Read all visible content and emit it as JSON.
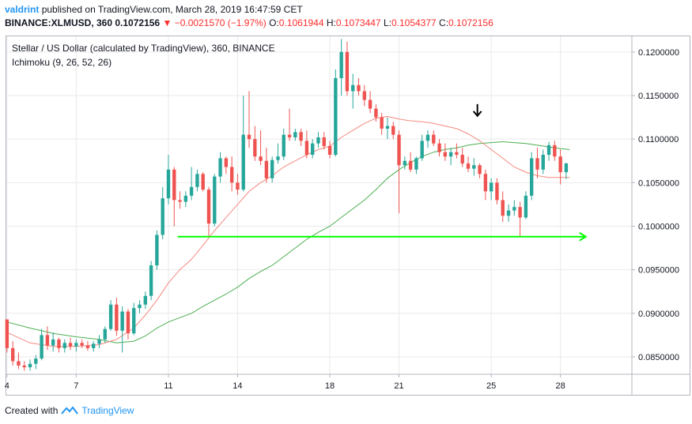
{
  "header": {
    "author": "valdrint",
    "published_text": "published on TradingView.com, March 28, 2019 16:47:59 CET",
    "symbol": "BINANCE:XLMUSD, 360",
    "last": "0.1072156",
    "change": "−0.0021570 (−1.97%)",
    "o_label": "O:",
    "o_value": "0.1061944",
    "h_label": "H:",
    "h_value": "0.1073447",
    "l_label": "L:",
    "l_value": "0.1054377",
    "c_label": "C:",
    "c_value": "0.1072156"
  },
  "legend": {
    "title": "Stellar / US Dollar (calculated by TradingView), 360, BINANCE",
    "indicator": "Ichimoku (9, 26, 52, 26)"
  },
  "footer": {
    "created_with": "Created with",
    "brand": "TradingView"
  },
  "colors": {
    "up": "#26a69a",
    "down": "#ef5350",
    "conversion_line": "#f5897f",
    "base_line": "#4caf50",
    "support_arrow": "#00ff00",
    "pointer_arrow": "#000000",
    "axis_text": "#131722",
    "grid": "#e9e9ea"
  },
  "chart_data": {
    "type": "candlestick",
    "title": "Stellar / US Dollar (calculated by TradingView), 360, BINANCE",
    "y_axis": {
      "range": [
        0.083,
        0.1218
      ],
      "ticks": [
        "0.1200000",
        "0.1150000",
        "0.1100000",
        "0.1050000",
        "0.1000000",
        "0.0950000",
        "0.0900000",
        "0.0850000"
      ],
      "tick_values": [
        0.12,
        0.115,
        0.11,
        0.105,
        0.1,
        0.095,
        0.09,
        0.085
      ]
    },
    "x_axis": {
      "ticks": [
        "4",
        "7",
        "11",
        "14",
        "18",
        "21",
        "25",
        "28"
      ],
      "tick_days": [
        4,
        7,
        11,
        14,
        18,
        21,
        25,
        28
      ],
      "day_range": [
        3.97,
        31.1
      ]
    },
    "candles": [
      {
        "day": 4.0,
        "o": 0.0893,
        "h": 0.0893,
        "l": 0.0855,
        "c": 0.086
      },
      {
        "day": 4.25,
        "o": 0.086,
        "h": 0.0868,
        "l": 0.084,
        "c": 0.0845
      },
      {
        "day": 4.5,
        "o": 0.0845,
        "h": 0.0855,
        "l": 0.0836,
        "c": 0.084
      },
      {
        "day": 4.75,
        "o": 0.084,
        "h": 0.0845,
        "l": 0.0834,
        "c": 0.0838
      },
      {
        "day": 5.0,
        "o": 0.0838,
        "h": 0.0847,
        "l": 0.0834,
        "c": 0.0842
      },
      {
        "day": 5.25,
        "o": 0.0842,
        "h": 0.0852,
        "l": 0.0836,
        "c": 0.0848
      },
      {
        "day": 5.5,
        "o": 0.0848,
        "h": 0.0882,
        "l": 0.0846,
        "c": 0.0875
      },
      {
        "day": 5.75,
        "o": 0.0875,
        "h": 0.0885,
        "l": 0.0858,
        "c": 0.0863
      },
      {
        "day": 6.0,
        "o": 0.0863,
        "h": 0.0878,
        "l": 0.0856,
        "c": 0.087
      },
      {
        "day": 6.25,
        "o": 0.087,
        "h": 0.0872,
        "l": 0.0855,
        "c": 0.086
      },
      {
        "day": 6.5,
        "o": 0.086,
        "h": 0.087,
        "l": 0.0855,
        "c": 0.0866
      },
      {
        "day": 6.75,
        "o": 0.0866,
        "h": 0.0872,
        "l": 0.0858,
        "c": 0.0862
      },
      {
        "day": 7.0,
        "o": 0.0862,
        "h": 0.087,
        "l": 0.0856,
        "c": 0.0866
      },
      {
        "day": 7.25,
        "o": 0.0866,
        "h": 0.087,
        "l": 0.086,
        "c": 0.0863
      },
      {
        "day": 7.5,
        "o": 0.0863,
        "h": 0.0868,
        "l": 0.0857,
        "c": 0.086
      },
      {
        "day": 7.75,
        "o": 0.086,
        "h": 0.0868,
        "l": 0.0856,
        "c": 0.0865
      },
      {
        "day": 8.0,
        "o": 0.0865,
        "h": 0.0875,
        "l": 0.086,
        "c": 0.087
      },
      {
        "day": 8.25,
        "o": 0.087,
        "h": 0.0885,
        "l": 0.0866,
        "c": 0.0882
      },
      {
        "day": 8.5,
        "o": 0.0882,
        "h": 0.0915,
        "l": 0.088,
        "c": 0.091
      },
      {
        "day": 8.75,
        "o": 0.091,
        "h": 0.0918,
        "l": 0.0874,
        "c": 0.088
      },
      {
        "day": 9.0,
        "o": 0.088,
        "h": 0.0908,
        "l": 0.0855,
        "c": 0.0902
      },
      {
        "day": 9.25,
        "o": 0.0902,
        "h": 0.0905,
        "l": 0.087,
        "c": 0.0877
      },
      {
        "day": 9.5,
        "o": 0.0877,
        "h": 0.0912,
        "l": 0.0875,
        "c": 0.0906
      },
      {
        "day": 9.75,
        "o": 0.0906,
        "h": 0.0915,
        "l": 0.09,
        "c": 0.091
      },
      {
        "day": 10.0,
        "o": 0.091,
        "h": 0.0925,
        "l": 0.0905,
        "c": 0.092
      },
      {
        "day": 10.25,
        "o": 0.092,
        "h": 0.096,
        "l": 0.0915,
        "c": 0.0955
      },
      {
        "day": 10.5,
        "o": 0.0955,
        "h": 0.0995,
        "l": 0.095,
        "c": 0.099
      },
      {
        "day": 10.75,
        "o": 0.099,
        "h": 0.1045,
        "l": 0.0985,
        "c": 0.1032
      },
      {
        "day": 11.0,
        "o": 0.1032,
        "h": 0.1082,
        "l": 0.1025,
        "c": 0.1065
      },
      {
        "day": 11.25,
        "o": 0.1065,
        "h": 0.1068,
        "l": 0.1,
        "c": 0.103
      },
      {
        "day": 11.5,
        "o": 0.103,
        "h": 0.104,
        "l": 0.102,
        "c": 0.1028
      },
      {
        "day": 11.75,
        "o": 0.1028,
        "h": 0.104,
        "l": 0.1022,
        "c": 0.1035
      },
      {
        "day": 12.0,
        "o": 0.1035,
        "h": 0.1068,
        "l": 0.103,
        "c": 0.1045
      },
      {
        "day": 12.25,
        "o": 0.1045,
        "h": 0.1065,
        "l": 0.104,
        "c": 0.106
      },
      {
        "day": 12.5,
        "o": 0.106,
        "h": 0.1062,
        "l": 0.104,
        "c": 0.1042
      },
      {
        "day": 12.75,
        "o": 0.1042,
        "h": 0.1045,
        "l": 0.0988,
        "c": 0.1003
      },
      {
        "day": 13.0,
        "o": 0.1003,
        "h": 0.106,
        "l": 0.1,
        "c": 0.1057
      },
      {
        "day": 13.25,
        "o": 0.1057,
        "h": 0.1085,
        "l": 0.105,
        "c": 0.1078
      },
      {
        "day": 13.5,
        "o": 0.1078,
        "h": 0.108,
        "l": 0.106,
        "c": 0.1068
      },
      {
        "day": 13.75,
        "o": 0.1068,
        "h": 0.108,
        "l": 0.104,
        "c": 0.105
      },
      {
        "day": 14.0,
        "o": 0.105,
        "h": 0.106,
        "l": 0.1036,
        "c": 0.1042
      },
      {
        "day": 14.25,
        "o": 0.1042,
        "h": 0.115,
        "l": 0.104,
        "c": 0.1105
      },
      {
        "day": 14.5,
        "o": 0.1105,
        "h": 0.1155,
        "l": 0.109,
        "c": 0.11
      },
      {
        "day": 14.75,
        "o": 0.11,
        "h": 0.1115,
        "l": 0.1075,
        "c": 0.108
      },
      {
        "day": 15.0,
        "o": 0.108,
        "h": 0.111,
        "l": 0.107,
        "c": 0.1075
      },
      {
        "day": 15.25,
        "o": 0.1075,
        "h": 0.109,
        "l": 0.105,
        "c": 0.1055
      },
      {
        "day": 15.5,
        "o": 0.1055,
        "h": 0.108,
        "l": 0.105,
        "c": 0.1076
      },
      {
        "day": 15.75,
        "o": 0.1076,
        "h": 0.1095,
        "l": 0.1072,
        "c": 0.108
      },
      {
        "day": 16.0,
        "o": 0.108,
        "h": 0.1112,
        "l": 0.1076,
        "c": 0.1105
      },
      {
        "day": 16.25,
        "o": 0.1105,
        "h": 0.1135,
        "l": 0.1098,
        "c": 0.1102
      },
      {
        "day": 16.5,
        "o": 0.1102,
        "h": 0.1112,
        "l": 0.1098,
        "c": 0.1108
      },
      {
        "day": 16.75,
        "o": 0.1108,
        "h": 0.1112,
        "l": 0.1092,
        "c": 0.1098
      },
      {
        "day": 17.0,
        "o": 0.1098,
        "h": 0.111,
        "l": 0.1078,
        "c": 0.1082
      },
      {
        "day": 17.25,
        "o": 0.1082,
        "h": 0.11,
        "l": 0.1078,
        "c": 0.1095
      },
      {
        "day": 17.5,
        "o": 0.1095,
        "h": 0.1108,
        "l": 0.109,
        "c": 0.1102
      },
      {
        "day": 17.75,
        "o": 0.1102,
        "h": 0.1108,
        "l": 0.1088,
        "c": 0.1092
      },
      {
        "day": 18.0,
        "o": 0.1092,
        "h": 0.1098,
        "l": 0.1078,
        "c": 0.1082
      },
      {
        "day": 18.25,
        "o": 0.1082,
        "h": 0.118,
        "l": 0.108,
        "c": 0.117
      },
      {
        "day": 18.5,
        "o": 0.117,
        "h": 0.1215,
        "l": 0.115,
        "c": 0.12
      },
      {
        "day": 18.75,
        "o": 0.12,
        "h": 0.1212,
        "l": 0.115,
        "c": 0.1155
      },
      {
        "day": 19.0,
        "o": 0.1155,
        "h": 0.1175,
        "l": 0.1135,
        "c": 0.1162
      },
      {
        "day": 19.25,
        "o": 0.1162,
        "h": 0.117,
        "l": 0.115,
        "c": 0.1155
      },
      {
        "day": 19.5,
        "o": 0.1155,
        "h": 0.1162,
        "l": 0.1138,
        "c": 0.1145
      },
      {
        "day": 19.75,
        "o": 0.1145,
        "h": 0.1155,
        "l": 0.113,
        "c": 0.1135
      },
      {
        "day": 20.0,
        "o": 0.1135,
        "h": 0.114,
        "l": 0.112,
        "c": 0.1125
      },
      {
        "day": 20.25,
        "o": 0.1125,
        "h": 0.113,
        "l": 0.1105,
        "c": 0.1112
      },
      {
        "day": 20.5,
        "o": 0.1112,
        "h": 0.1125,
        "l": 0.11,
        "c": 0.1115
      },
      {
        "day": 20.75,
        "o": 0.1115,
        "h": 0.112,
        "l": 0.11,
        "c": 0.1105
      },
      {
        "day": 21.0,
        "o": 0.1105,
        "h": 0.111,
        "l": 0.1015,
        "c": 0.107
      },
      {
        "day": 21.25,
        "o": 0.107,
        "h": 0.108,
        "l": 0.1065,
        "c": 0.1075
      },
      {
        "day": 21.5,
        "o": 0.1075,
        "h": 0.1085,
        "l": 0.1062,
        "c": 0.1065
      },
      {
        "day": 21.75,
        "o": 0.1065,
        "h": 0.108,
        "l": 0.106,
        "c": 0.1078
      },
      {
        "day": 22.0,
        "o": 0.1078,
        "h": 0.1105,
        "l": 0.1075,
        "c": 0.1098
      },
      {
        "day": 22.25,
        "o": 0.1098,
        "h": 0.111,
        "l": 0.109,
        "c": 0.1105
      },
      {
        "day": 22.5,
        "o": 0.1105,
        "h": 0.111,
        "l": 0.1092,
        "c": 0.1095
      },
      {
        "day": 22.75,
        "o": 0.1095,
        "h": 0.11,
        "l": 0.108,
        "c": 0.1085
      },
      {
        "day": 23.0,
        "o": 0.1085,
        "h": 0.1095,
        "l": 0.1075,
        "c": 0.108
      },
      {
        "day": 23.25,
        "o": 0.108,
        "h": 0.109,
        "l": 0.107,
        "c": 0.1085
      },
      {
        "day": 23.5,
        "o": 0.1085,
        "h": 0.1095,
        "l": 0.1078,
        "c": 0.1082
      },
      {
        "day": 23.75,
        "o": 0.1082,
        "h": 0.109,
        "l": 0.1068,
        "c": 0.1072
      },
      {
        "day": 24.0,
        "o": 0.1072,
        "h": 0.108,
        "l": 0.1062,
        "c": 0.1066
      },
      {
        "day": 24.25,
        "o": 0.1066,
        "h": 0.1078,
        "l": 0.1058,
        "c": 0.107
      },
      {
        "day": 24.5,
        "o": 0.107,
        "h": 0.1072,
        "l": 0.1055,
        "c": 0.106
      },
      {
        "day": 24.75,
        "o": 0.106,
        "h": 0.1065,
        "l": 0.103,
        "c": 0.104
      },
      {
        "day": 25.0,
        "o": 0.104,
        "h": 0.1055,
        "l": 0.103,
        "c": 0.105
      },
      {
        "day": 25.25,
        "o": 0.105,
        "h": 0.1055,
        "l": 0.1025,
        "c": 0.103
      },
      {
        "day": 25.5,
        "o": 0.103,
        "h": 0.104,
        "l": 0.1005,
        "c": 0.1012
      },
      {
        "day": 25.75,
        "o": 0.1012,
        "h": 0.1025,
        "l": 0.1005,
        "c": 0.1018
      },
      {
        "day": 26.0,
        "o": 0.1018,
        "h": 0.103,
        "l": 0.1012,
        "c": 0.1022
      },
      {
        "day": 26.25,
        "o": 0.1022,
        "h": 0.1028,
        "l": 0.0988,
        "c": 0.101
      },
      {
        "day": 26.5,
        "o": 0.101,
        "h": 0.104,
        "l": 0.1008,
        "c": 0.1035
      },
      {
        "day": 26.75,
        "o": 0.1035,
        "h": 0.1085,
        "l": 0.103,
        "c": 0.1078
      },
      {
        "day": 27.0,
        "o": 0.1078,
        "h": 0.109,
        "l": 0.1055,
        "c": 0.1065
      },
      {
        "day": 27.25,
        "o": 0.1065,
        "h": 0.1088,
        "l": 0.106,
        "c": 0.1082
      },
      {
        "day": 27.5,
        "o": 0.1082,
        "h": 0.1097,
        "l": 0.1075,
        "c": 0.1093
      },
      {
        "day": 27.75,
        "o": 0.1093,
        "h": 0.1098,
        "l": 0.1075,
        "c": 0.108
      },
      {
        "day": 28.0,
        "o": 0.108,
        "h": 0.1088,
        "l": 0.1048,
        "c": 0.1062
      },
      {
        "day": 28.25,
        "o": 0.1062,
        "h": 0.1073,
        "l": 0.1054,
        "c": 0.1072
      }
    ],
    "conversion_line": [
      [
        4.0,
        0.0878
      ],
      [
        5.0,
        0.0866
      ],
      [
        6.0,
        0.0862
      ],
      [
        7.0,
        0.0862
      ],
      [
        8.0,
        0.0864
      ],
      [
        8.75,
        0.087
      ],
      [
        9.5,
        0.0883
      ],
      [
        10.0,
        0.0898
      ],
      [
        10.5,
        0.0915
      ],
      [
        11.0,
        0.0935
      ],
      [
        11.5,
        0.095
      ],
      [
        12.0,
        0.0962
      ],
      [
        12.5,
        0.0978
      ],
      [
        13.0,
        0.0995
      ],
      [
        13.5,
        0.101
      ],
      [
        14.0,
        0.1025
      ],
      [
        14.5,
        0.104
      ],
      [
        15.0,
        0.105
      ],
      [
        15.5,
        0.1058
      ],
      [
        16.0,
        0.1068
      ],
      [
        16.5,
        0.1075
      ],
      [
        17.0,
        0.1082
      ],
      [
        17.5,
        0.1088
      ],
      [
        18.0,
        0.1092
      ],
      [
        18.5,
        0.1102
      ],
      [
        19.0,
        0.111
      ],
      [
        19.5,
        0.1118
      ],
      [
        20.0,
        0.1124
      ],
      [
        20.5,
        0.1126
      ],
      [
        21.0,
        0.1123
      ],
      [
        21.5,
        0.1121
      ],
      [
        22.0,
        0.112
      ],
      [
        22.5,
        0.1118
      ],
      [
        23.0,
        0.1115
      ],
      [
        23.5,
        0.1112
      ],
      [
        24.0,
        0.1106
      ],
      [
        24.5,
        0.1098
      ],
      [
        25.0,
        0.1088
      ],
      [
        25.5,
        0.1078
      ],
      [
        26.0,
        0.1068
      ],
      [
        26.5,
        0.1062
      ],
      [
        27.0,
        0.1058
      ],
      [
        27.5,
        0.1056
      ],
      [
        28.0,
        0.1056
      ],
      [
        28.4,
        0.1056
      ]
    ],
    "base_line": [
      [
        4.0,
        0.089
      ],
      [
        5.0,
        0.0883
      ],
      [
        6.0,
        0.0877
      ],
      [
        7.0,
        0.0873
      ],
      [
        8.0,
        0.087
      ],
      [
        8.75,
        0.0866
      ],
      [
        9.5,
        0.0868
      ],
      [
        10.0,
        0.0874
      ],
      [
        10.5,
        0.0883
      ],
      [
        11.0,
        0.089
      ],
      [
        11.5,
        0.0895
      ],
      [
        12.0,
        0.09
      ],
      [
        12.5,
        0.0908
      ],
      [
        13.0,
        0.0915
      ],
      [
        13.5,
        0.0922
      ],
      [
        14.0,
        0.093
      ],
      [
        14.5,
        0.094
      ],
      [
        15.0,
        0.0948
      ],
      [
        15.5,
        0.0955
      ],
      [
        16.0,
        0.0965
      ],
      [
        16.5,
        0.0975
      ],
      [
        17.0,
        0.0985
      ],
      [
        17.5,
        0.0993
      ],
      [
        18.0,
        0.1
      ],
      [
        18.5,
        0.101
      ],
      [
        19.0,
        0.102
      ],
      [
        19.5,
        0.103
      ],
      [
        20.0,
        0.1042
      ],
      [
        20.5,
        0.1055
      ],
      [
        21.0,
        0.1065
      ],
      [
        21.5,
        0.1073
      ],
      [
        22.0,
        0.108
      ],
      [
        22.5,
        0.1085
      ],
      [
        23.0,
        0.1088
      ],
      [
        23.5,
        0.109
      ],
      [
        24.0,
        0.1093
      ],
      [
        24.5,
        0.1095
      ],
      [
        25.0,
        0.1096
      ],
      [
        25.5,
        0.1097
      ],
      [
        26.0,
        0.1096
      ],
      [
        26.5,
        0.1095
      ],
      [
        27.0,
        0.1093
      ],
      [
        27.5,
        0.1091
      ],
      [
        28.0,
        0.1089
      ],
      [
        28.4,
        0.1088
      ]
    ],
    "annotations": [
      {
        "kind": "horizontal-arrow",
        "from_day": 11.4,
        "to_day": 29.1,
        "price": 0.0988
      },
      {
        "kind": "down-arrow",
        "day": 24.4,
        "price": 0.1132
      }
    ]
  }
}
